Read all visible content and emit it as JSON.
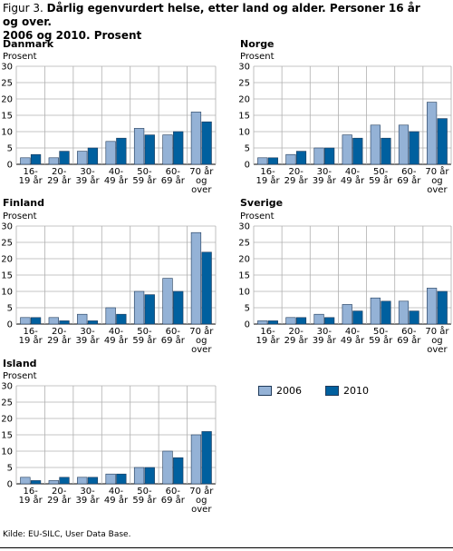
{
  "figure": {
    "prefix": "Figur 3. ",
    "title_line1": "Dårlig egenvurdert helse, etter land og alder. Personer 16 år og over.",
    "title_line2": "2006 og 2010. Prosent",
    "source": "Kilde: EU-SILC, User Data Base."
  },
  "colors": {
    "2006": "#94b2d6",
    "2010": "#00609f",
    "grid": "#b0b0b0",
    "edge": "#1f3a5a"
  },
  "legend": [
    {
      "label": "2006",
      "color": "#94b2d6"
    },
    {
      "label": "2010",
      "color": "#00609f"
    }
  ],
  "chart_data": [
    {
      "type": "bar",
      "title": "Danmark",
      "ylabel": "Prosent",
      "ylim": [
        0,
        30
      ],
      "yticks": [
        "0",
        "5",
        "10",
        "15",
        "20",
        "25",
        "30"
      ],
      "categories": [
        [
          "16-",
          "19 år"
        ],
        [
          "20-",
          "29 år"
        ],
        [
          "30-",
          "39 år"
        ],
        [
          "40-",
          "49 år"
        ],
        [
          "50-",
          "59 år"
        ],
        [
          "60-",
          "69 år"
        ],
        [
          "70 år",
          "og",
          "over"
        ]
      ],
      "series": [
        {
          "name": "2006",
          "values": [
            2,
            2,
            4,
            7,
            11,
            9,
            16
          ]
        },
        {
          "name": "2010",
          "values": [
            3,
            4,
            5,
            8,
            9,
            10,
            13
          ]
        }
      ],
      "grid": true
    },
    {
      "type": "bar",
      "title": "Norge",
      "ylabel": "Prosent",
      "ylim": [
        0,
        30
      ],
      "yticks": [
        "0",
        "5",
        "10",
        "15",
        "20",
        "25",
        "30"
      ],
      "categories": [
        [
          "16-",
          "19 år"
        ],
        [
          "20-",
          "29 år"
        ],
        [
          "30-",
          "39 år"
        ],
        [
          "40-",
          "49 år"
        ],
        [
          "50-",
          "59 år"
        ],
        [
          "60-",
          "69 år"
        ],
        [
          "70 år",
          "og",
          "over"
        ]
      ],
      "series": [
        {
          "name": "2006",
          "values": [
            2,
            3,
            5,
            9,
            12,
            12,
            19
          ]
        },
        {
          "name": "2010",
          "values": [
            2,
            4,
            5,
            8,
            8,
            10,
            14
          ]
        }
      ],
      "grid": true
    },
    {
      "type": "bar",
      "title": "Finland",
      "ylabel": "Prosent",
      "ylim": [
        0,
        30
      ],
      "yticks": [
        "0",
        "5",
        "10",
        "15",
        "20",
        "25",
        "30"
      ],
      "categories": [
        [
          "16-",
          "19 år"
        ],
        [
          "20-",
          "29 år"
        ],
        [
          "30-",
          "39 år"
        ],
        [
          "40-",
          "49 år"
        ],
        [
          "50-",
          "59 år"
        ],
        [
          "60-",
          "69 år"
        ],
        [
          "70 år",
          "og",
          "over"
        ]
      ],
      "series": [
        {
          "name": "2006",
          "values": [
            2,
            2,
            3,
            5,
            10,
            14,
            28
          ]
        },
        {
          "name": "2010",
          "values": [
            2,
            1,
            1,
            3,
            9,
            10,
            22
          ]
        }
      ],
      "grid": true
    },
    {
      "type": "bar",
      "title": "Sverige",
      "ylabel": "Prosent",
      "ylim": [
        0,
        30
      ],
      "yticks": [
        "0",
        "5",
        "10",
        "15",
        "20",
        "25",
        "30"
      ],
      "categories": [
        [
          "16-",
          "19 år"
        ],
        [
          "20-",
          "29 år"
        ],
        [
          "30-",
          "39 år"
        ],
        [
          "40-",
          "49 år"
        ],
        [
          "50-",
          "59 år"
        ],
        [
          "60-",
          "69 år"
        ],
        [
          "70 år",
          "og",
          "over"
        ]
      ],
      "series": [
        {
          "name": "2006",
          "values": [
            1,
            2,
            3,
            6,
            8,
            7,
            11
          ]
        },
        {
          "name": "2010",
          "values": [
            1,
            2,
            2,
            4,
            7,
            4,
            10
          ]
        }
      ],
      "grid": true
    },
    {
      "type": "bar",
      "title": "Island",
      "ylabel": "Prosent",
      "ylim": [
        0,
        30
      ],
      "yticks": [
        "0",
        "5",
        "10",
        "15",
        "20",
        "25",
        "30"
      ],
      "categories": [
        [
          "16-",
          "19 år"
        ],
        [
          "20-",
          "29 år"
        ],
        [
          "30-",
          "39 år"
        ],
        [
          "40-",
          "49 år"
        ],
        [
          "50-",
          "59 år"
        ],
        [
          "60-",
          "69 år"
        ],
        [
          "70 år",
          "og",
          "over"
        ]
      ],
      "series": [
        {
          "name": "2006",
          "values": [
            2,
            1,
            2,
            3,
            5,
            10,
            15
          ]
        },
        {
          "name": "2010",
          "values": [
            1,
            2,
            2,
            3,
            5,
            8,
            16
          ]
        }
      ],
      "grid": true
    }
  ]
}
